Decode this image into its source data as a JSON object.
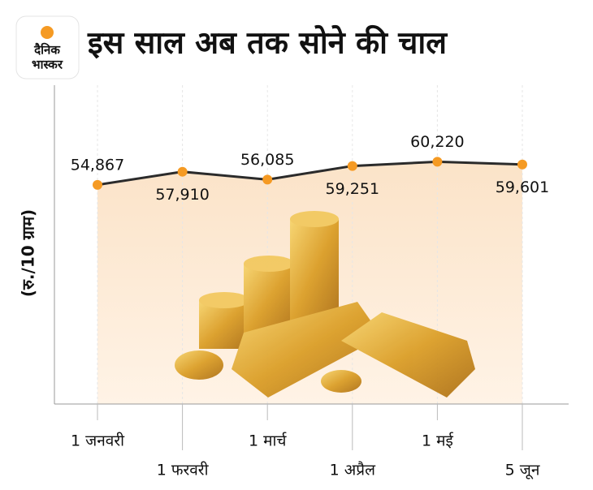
{
  "logo": {
    "line1": "दैनिक",
    "line2": "भास्कर"
  },
  "chart_data": {
    "type": "line",
    "title": "इस साल अब तक सोने की चाल",
    "y_label": "(रु./10 ग्राम)",
    "categories": [
      "1 जनवरी",
      "1 फरवरी",
      "1 मार्च",
      "1 अप्रैल",
      "1 मई",
      "5 जून"
    ],
    "values": [
      54867,
      57910,
      56085,
      59251,
      60220,
      59601
    ],
    "value_labels": [
      "54,867",
      "57,910",
      "56,085",
      "59,251",
      "60,220",
      "59,601"
    ],
    "color": "#2b2b2b",
    "marker_color": "#f59a23",
    "ylim": [
      4000,
      78000
    ],
    "grid": true
  }
}
